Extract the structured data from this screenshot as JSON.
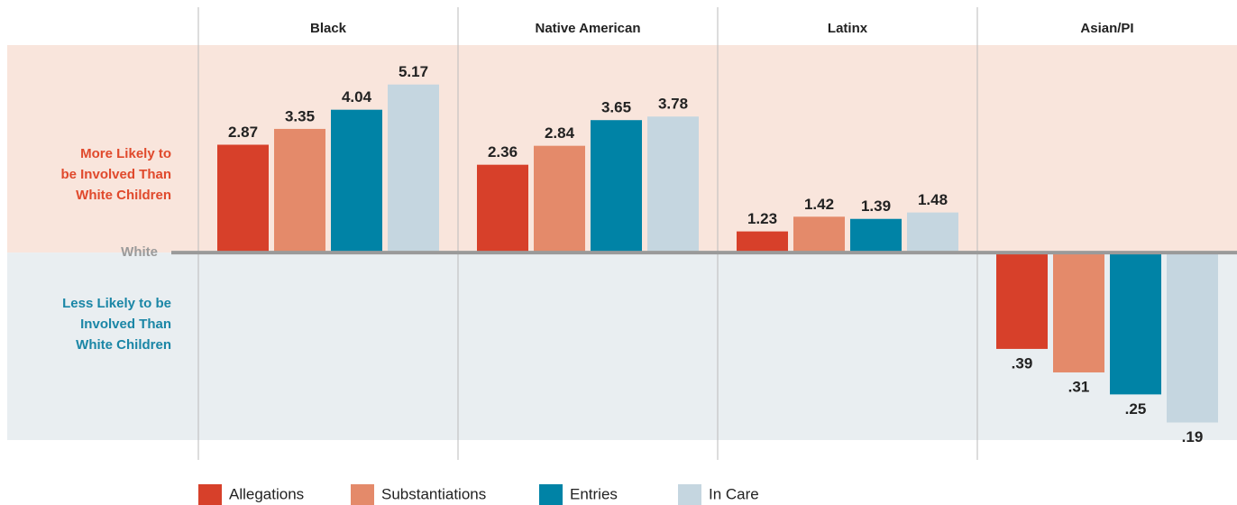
{
  "chart_data": {
    "type": "bar",
    "log_scale": true,
    "categories": [
      "Black",
      "Native American",
      "Latinx",
      "Asian/PI"
    ],
    "series": [
      {
        "name": "Allegations",
        "color": "#d7402a",
        "values": [
          2.87,
          2.36,
          1.23,
          0.39
        ],
        "value_labels": [
          "2.87",
          "2.36",
          "1.23",
          ".39"
        ]
      },
      {
        "name": "Substantiations",
        "color": "#e48a6a",
        "values": [
          3.35,
          2.84,
          1.42,
          0.31
        ],
        "value_labels": [
          "3.35",
          "2.84",
          "1.42",
          ".31"
        ]
      },
      {
        "name": "Entries",
        "color": "#0083a6",
        "values": [
          4.04,
          3.65,
          1.39,
          0.25
        ],
        "value_labels": [
          "4.04",
          "3.65",
          "1.39",
          ".25"
        ]
      },
      {
        "name": "In Care",
        "color": "#c5d6e0",
        "values": [
          5.17,
          3.78,
          1.48,
          0.19
        ],
        "value_labels": [
          "5.17",
          "3.78",
          "1.48",
          ".19"
        ]
      }
    ],
    "ylim": [
      0.16,
      7.6
    ],
    "yticks": [
      {
        "value": 1,
        "label": "White"
      }
    ],
    "annotations": [
      {
        "lines": [
          "More Likely to",
          "be Involved Than",
          "White Children"
        ],
        "color": "#e0492c",
        "band_color": "#f9e5dc"
      },
      {
        "lines": [
          "Less Likely to be",
          "Involved Than",
          "White Children"
        ],
        "color": "#1a86a6",
        "band_color": "#e9eef1"
      }
    ]
  }
}
